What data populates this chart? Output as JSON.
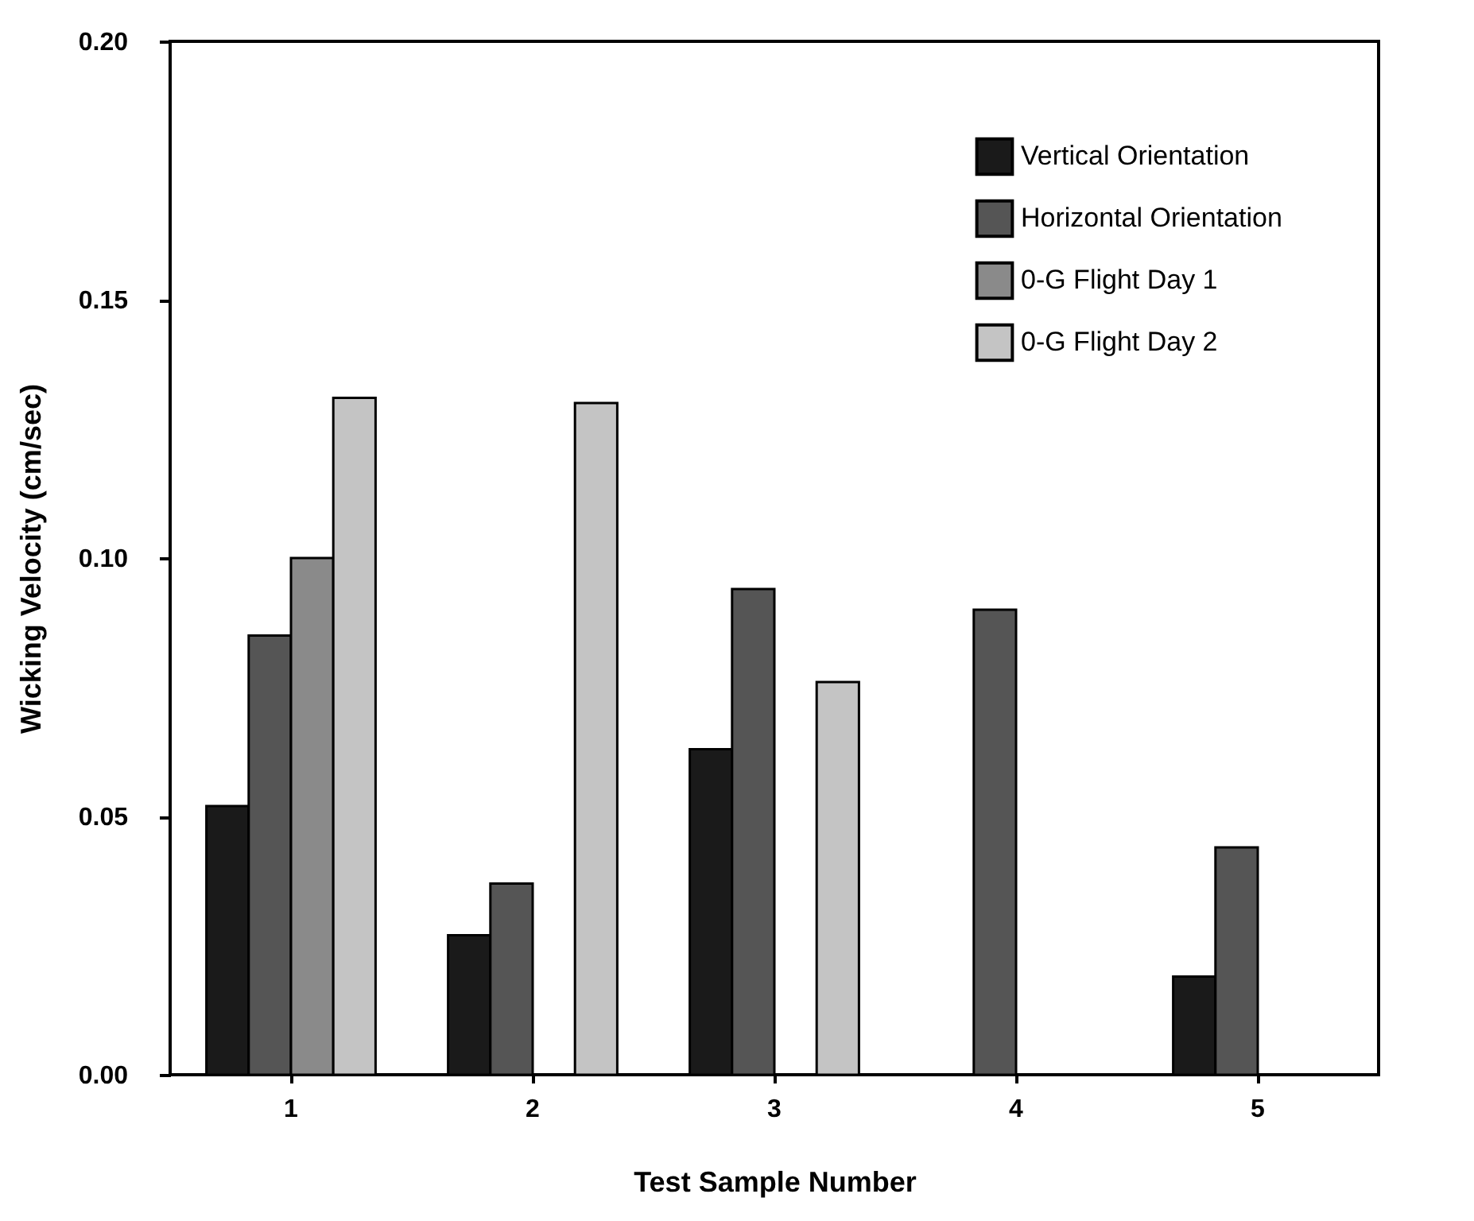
{
  "chart_data": {
    "type": "bar",
    "xlabel": "Test Sample Number",
    "ylabel": "Wicking Velocity (cm/sec)",
    "categories": [
      "1",
      "2",
      "3",
      "4",
      "5"
    ],
    "series": [
      {
        "name": "Vertical Orientation",
        "color": "#1a1a1a",
        "values": [
          0.052,
          0.027,
          0.063,
          null,
          0.019
        ]
      },
      {
        "name": "Horizontal Orientation",
        "color": "#555555",
        "values": [
          0.085,
          0.037,
          0.094,
          0.09,
          0.044
        ]
      },
      {
        "name": "0-G Flight Day 1",
        "color": "#8a8a8a",
        "values": [
          0.1,
          null,
          null,
          null,
          null
        ]
      },
      {
        "name": "0-G Flight Day 2",
        "color": "#c4c4c4",
        "values": [
          0.131,
          0.13,
          0.076,
          null,
          null
        ]
      }
    ],
    "ylim": [
      0,
      0.2
    ],
    "yticks": [
      {
        "value": 0,
        "label": "0.00"
      },
      {
        "value": 0.05,
        "label": "0.05"
      },
      {
        "value": 0.1,
        "label": "0.10"
      },
      {
        "value": 0.15,
        "label": "0.15"
      },
      {
        "value": 0.2,
        "label": "0.20"
      }
    ],
    "grid": false,
    "legend": "top right"
  }
}
